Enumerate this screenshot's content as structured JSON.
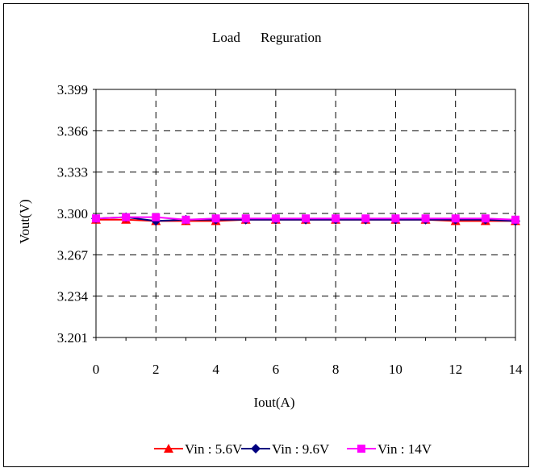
{
  "chart_data": {
    "type": "line",
    "title": "Load",
    "subtitle": "Reguration",
    "xlabel": "Iout(A)",
    "ylabel": "Vout(V)",
    "xlim": [
      0,
      14
    ],
    "ylim": [
      3.201,
      3.399
    ],
    "xticks": [
      "0",
      "2",
      "4",
      "6",
      "8",
      "10",
      "12",
      "14"
    ],
    "yticks": [
      "3.201",
      "3.234",
      "3.267",
      "3.300",
      "3.333",
      "3.366",
      "3.399"
    ],
    "grid": true,
    "legend_position": "bottom",
    "x": [
      0,
      1,
      2,
      3,
      4,
      5,
      6,
      7,
      8,
      9,
      10,
      11,
      12,
      13,
      14
    ],
    "series": [
      {
        "name": "Vin : 5.6V",
        "color": "#ff0000",
        "marker": "triangle",
        "values": [
          3.295,
          3.295,
          3.294,
          3.294,
          3.294,
          3.295,
          3.295,
          3.295,
          3.295,
          3.295,
          3.295,
          3.295,
          3.294,
          3.294,
          3.294
        ]
      },
      {
        "name": "Vin : 9.6V",
        "color": "#000080",
        "marker": "diamond",
        "values": [
          3.296,
          3.297,
          3.294,
          3.295,
          3.295,
          3.295,
          3.295,
          3.295,
          3.295,
          3.295,
          3.295,
          3.295,
          3.295,
          3.295,
          3.294
        ]
      },
      {
        "name": "Vin : 14V",
        "color": "#ff00ff",
        "marker": "square",
        "values": [
          3.296,
          3.297,
          3.297,
          3.295,
          3.296,
          3.296,
          3.296,
          3.296,
          3.296,
          3.296,
          3.296,
          3.296,
          3.296,
          3.296,
          3.295
        ]
      }
    ]
  }
}
